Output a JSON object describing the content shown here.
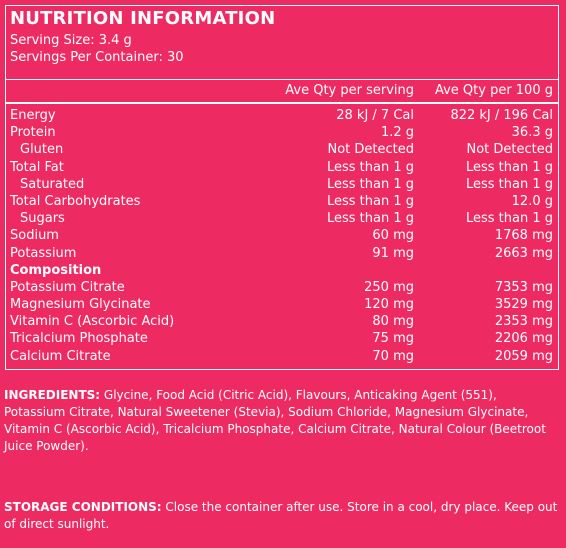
{
  "title": "NUTRITION INFORMATION",
  "serving_size": "Serving Size: 3.4 g",
  "servings_per_container": "Servings Per Container: 30",
  "columns": {
    "per_serving": "Ave Qty per serving",
    "per_100g": "Ave Qty per 100 g"
  },
  "rows": [
    {
      "name": "Energy",
      "indent": false,
      "bold": false,
      "serving": "28 kJ / 7 Cal",
      "per100": "822 kJ / 196 Cal"
    },
    {
      "name": "Protein",
      "indent": false,
      "bold": false,
      "serving": "1.2 g",
      "per100": "36.3 g"
    },
    {
      "name": "Gluten",
      "indent": true,
      "bold": false,
      "serving": "Not Detected",
      "per100": "Not Detected"
    },
    {
      "name": "Total Fat",
      "indent": false,
      "bold": false,
      "serving": "Less than 1 g",
      "per100": "Less than 1 g"
    },
    {
      "name": "Saturated",
      "indent": true,
      "bold": false,
      "serving": "Less than 1 g",
      "per100": "Less than 1 g"
    },
    {
      "name": "Total Carbohydrates",
      "indent": false,
      "bold": false,
      "serving": "Less than 1 g",
      "per100": "12.0 g"
    },
    {
      "name": "Sugars",
      "indent": true,
      "bold": false,
      "serving": "Less than 1 g",
      "per100": "Less than 1 g"
    },
    {
      "name": "Sodium",
      "indent": false,
      "bold": false,
      "serving": "60 mg",
      "per100": "1768 mg"
    },
    {
      "name": "Potassium",
      "indent": false,
      "bold": false,
      "serving": "91 mg",
      "per100": "2663 mg"
    },
    {
      "name": "Composition",
      "indent": false,
      "bold": true,
      "serving": "",
      "per100": ""
    },
    {
      "name": "Potassium Citrate",
      "indent": false,
      "bold": false,
      "serving": "250 mg",
      "per100": "7353 mg"
    },
    {
      "name": "Magnesium Glycinate",
      "indent": false,
      "bold": false,
      "serving": "120 mg",
      "per100": "3529 mg"
    },
    {
      "name": "Vitamin C (Ascorbic Acid)",
      "indent": false,
      "bold": false,
      "serving": "80 mg",
      "per100": "2353 mg"
    },
    {
      "name": "Tricalcium Phosphate",
      "indent": false,
      "bold": false,
      "serving": "75 mg",
      "per100": "2206 mg"
    },
    {
      "name": "Calcium Citrate",
      "indent": false,
      "bold": false,
      "serving": "70 mg",
      "per100": "2059 mg"
    }
  ],
  "ingredients": {
    "label": "INGREDIENTS:",
    "text": " Glycine, Food Acid (Citric Acid), Flavours, Anticaking Agent (551), Potassium Citrate, Natural Sweetener (Stevia), Sodium Chloride, Magnesium Glycinate, Vitamin C (Ascorbic Acid), Tricalcium Phosphate, Calcium Citrate, Natural Colour (Beetroot Juice Powder)."
  },
  "storage": {
    "label": "STORAGE CONDITIONS:",
    "text": " Close the container after use. Store in a cool, dry place. Keep out of direct sunlight."
  }
}
